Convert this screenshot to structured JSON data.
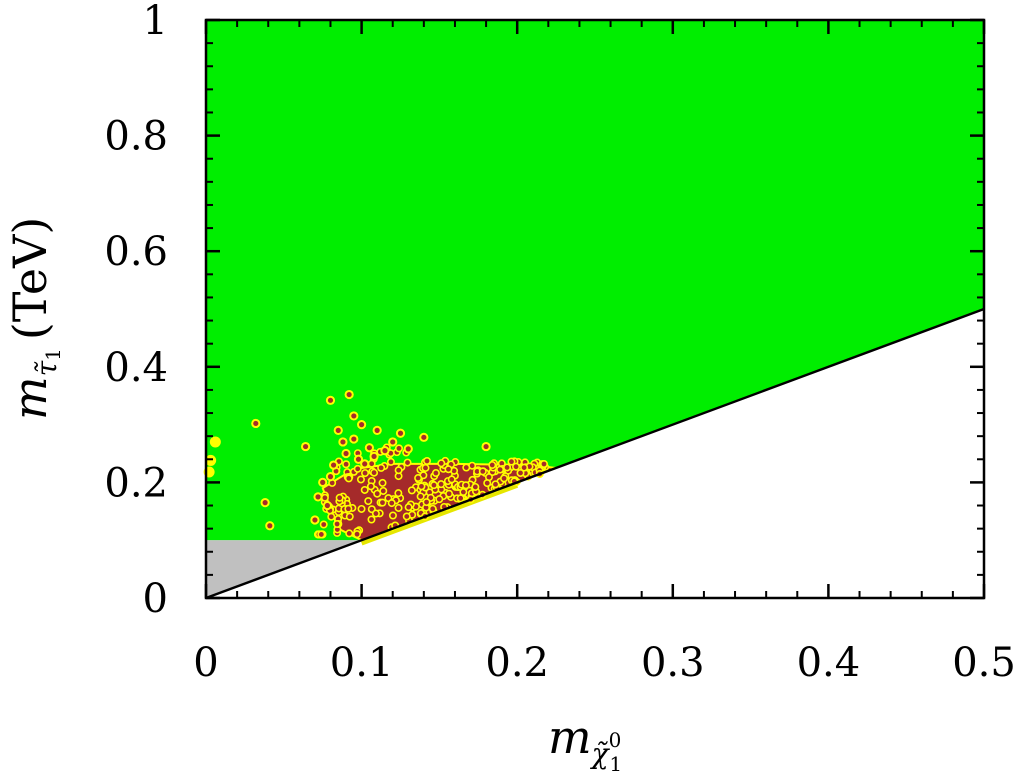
{
  "chart_data": {
    "type": "scatter",
    "title": "",
    "xlabel": {
      "symbol": "m",
      "sub_base": "χ̃",
      "sub_sup": "0",
      "sub_sub": "1"
    },
    "ylabel": {
      "symbol": "m",
      "sub_base": "τ̃",
      "sub_sub": "1",
      "unit": "(TeV)"
    },
    "xlim": [
      0,
      0.5
    ],
    "ylim": [
      0,
      1
    ],
    "x_ticks": [
      0,
      0.1,
      0.2,
      0.3,
      0.4,
      0.5
    ],
    "x_tick_labels": [
      "0",
      "0.1",
      "0.2",
      "0.3",
      "0.4",
      "0.5"
    ],
    "y_ticks": [
      0,
      0.2,
      0.4,
      0.6,
      0.8,
      1
    ],
    "y_tick_labels": [
      "0",
      "0.2",
      "0.4",
      "0.6",
      "0.8",
      "1"
    ],
    "grid": false,
    "colors": {
      "allowed_region": "#00ee00",
      "excluded_region": "#c0c0c0",
      "points_fill": "#a52a2a",
      "points_edge": "#ffff00",
      "diagonal": "#000000"
    },
    "regions": [
      {
        "name": "allowed",
        "polygon": [
          [
            0,
            0.1
          ],
          [
            0,
            1
          ],
          [
            0.5,
            1
          ],
          [
            0.5,
            0.5
          ],
          [
            0.1,
            0.1
          ]
        ]
      },
      {
        "name": "excluded",
        "polygon": [
          [
            0,
            0
          ],
          [
            0,
            0.1
          ],
          [
            0.1,
            0.1
          ]
        ]
      }
    ],
    "diagonal": {
      "from": [
        0,
        0
      ],
      "to": [
        0.5,
        0.5
      ]
    },
    "isolated_points": [
      [
        0.003,
        0.238
      ],
      [
        0.002,
        0.218
      ],
      [
        0.006,
        0.27
      ],
      [
        0.032,
        0.302
      ],
      [
        0.038,
        0.165
      ],
      [
        0.041,
        0.125
      ],
      [
        0.064,
        0.262
      ],
      [
        0.092,
        0.352
      ],
      [
        0.08,
        0.342
      ],
      [
        0.14,
        0.278
      ],
      [
        0.18,
        0.262
      ],
      [
        0.072,
        0.175
      ],
      [
        0.07,
        0.135
      ],
      [
        0.095,
        0.315
      ],
      [
        0.1,
        0.3
      ],
      [
        0.085,
        0.29
      ],
      [
        0.11,
        0.29
      ],
      [
        0.125,
        0.285
      ],
      [
        0.12,
        0.27
      ],
      [
        0.075,
        0.2
      ],
      [
        0.08,
        0.21
      ],
      [
        0.078,
        0.16
      ],
      [
        0.082,
        0.23
      ],
      [
        0.105,
        0.26
      ],
      [
        0.115,
        0.255
      ],
      [
        0.13,
        0.258
      ],
      [
        0.09,
        0.25
      ],
      [
        0.095,
        0.275
      ],
      [
        0.088,
        0.27
      ],
      [
        0.098,
        0.24
      ],
      [
        0.102,
        0.232
      ],
      [
        0.108,
        0.245
      ]
    ],
    "dense_cluster": {
      "x_range": [
        0.075,
        0.225
      ],
      "y_upper": [
        [
          0.075,
          0.19
        ],
        [
          0.09,
          0.215
        ],
        [
          0.1,
          0.225
        ],
        [
          0.12,
          0.232
        ],
        [
          0.16,
          0.232
        ],
        [
          0.21,
          0.23
        ],
        [
          0.225,
          0.225
        ]
      ]
    }
  }
}
